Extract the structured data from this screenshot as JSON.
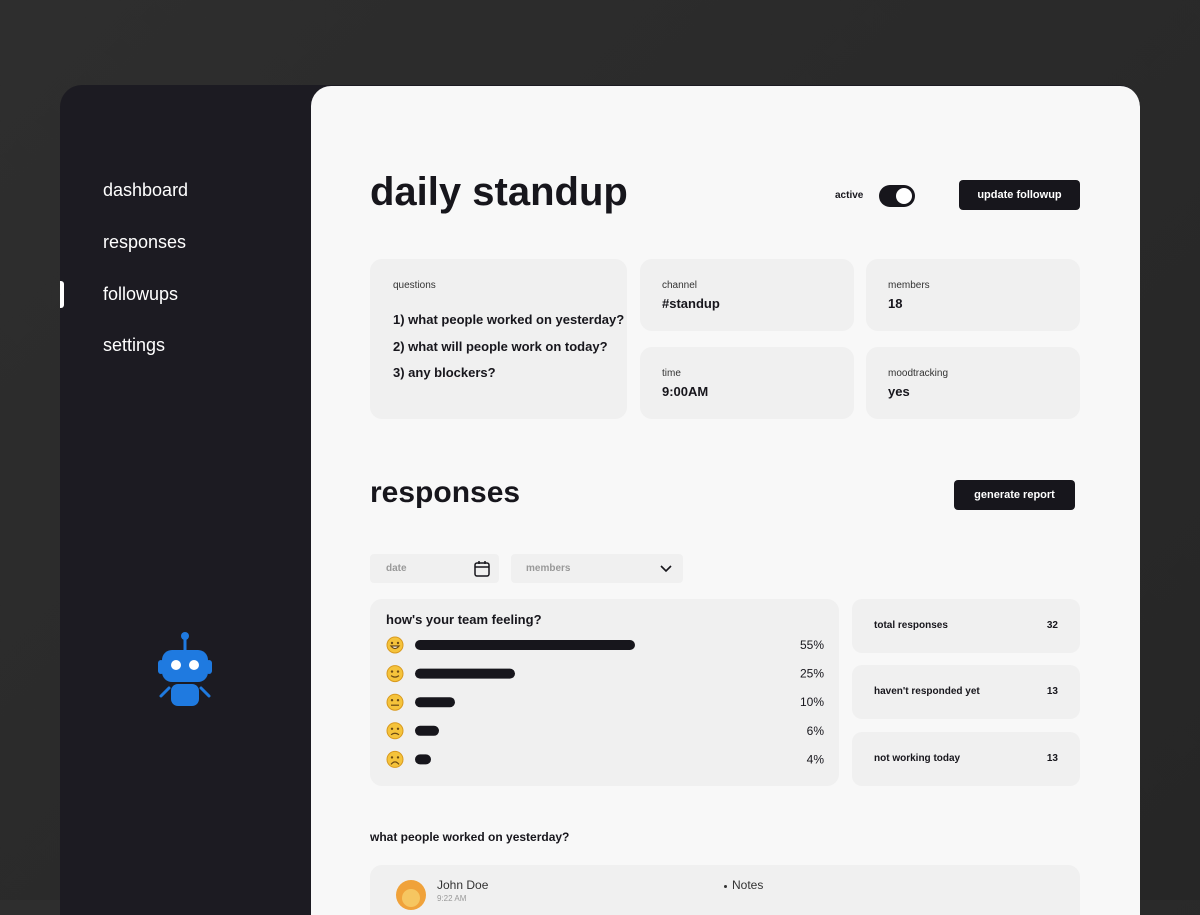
{
  "sidebar": {
    "nav": [
      "dashboard",
      "responses",
      "followups",
      "settings"
    ]
  },
  "header": {
    "title": "daily standup",
    "status": "active",
    "button": "update followup"
  },
  "details": {
    "questions": {
      "label": "questions",
      "items": [
        "1) what people worked on yesterday?",
        "2) what will people work on today?",
        "3) any blockers?"
      ]
    },
    "channel": {
      "label": "channel",
      "value": "#standup"
    },
    "members": {
      "label": "members",
      "value": 18
    },
    "time": {
      "label": "time",
      "value": "9:00AM"
    },
    "moodtracking": {
      "label": "moodtracking",
      "value": "yes"
    }
  },
  "responses": {
    "title": "responses",
    "button": "generate report",
    "filters": [
      "date",
      "members"
    ],
    "mood": {
      "title": "how's your team feeling?",
      "values": [
        55,
        25,
        10,
        6,
        4
      ],
      "value_labels": [
        "55%",
        "25%",
        "10%",
        "6%",
        "4%"
      ]
    },
    "stats": [
      {
        "label": "total responses",
        "value": 32
      },
      {
        "label": "haven't responded yet",
        "value": 13
      },
      {
        "label": "not working today",
        "value": 13
      }
    ],
    "section_title": "what people worked on yesterday?",
    "entries": [
      {
        "name": "John Doe",
        "time": "9:22 AM",
        "notes": "Notes"
      }
    ]
  }
}
